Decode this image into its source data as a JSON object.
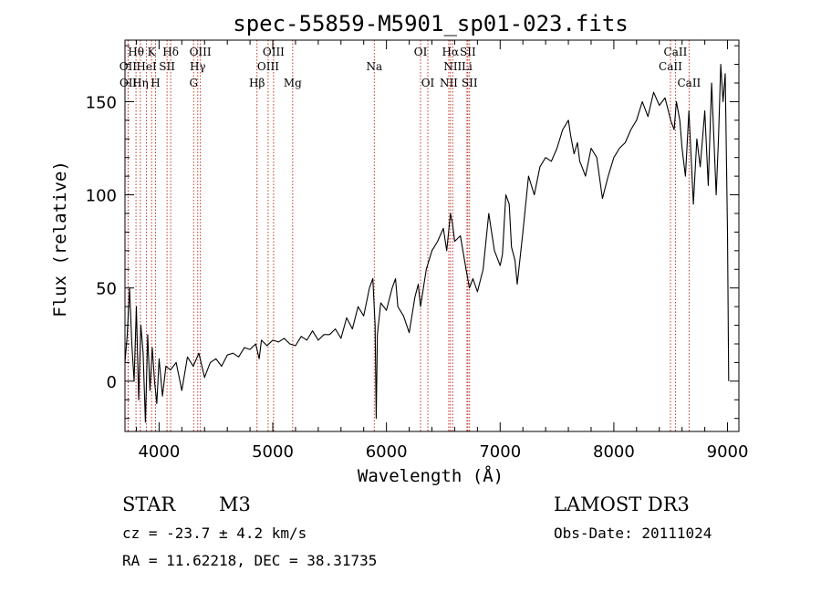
{
  "chart_data": {
    "type": "line",
    "title": "spec-55859-M5901_sp01-023.fits",
    "xlabel": "Wavelength (Å)",
    "ylabel": "Flux (relative)",
    "xlim": [
      3700,
      9100
    ],
    "ylim": [
      -27,
      183
    ],
    "x_ticks": [
      4000,
      5000,
      6000,
      7000,
      8000,
      9000
    ],
    "y_ticks": [
      0,
      50,
      100,
      150
    ],
    "series": [
      {
        "name": "flux",
        "x": [
          3700,
          3720,
          3740,
          3760,
          3780,
          3800,
          3820,
          3840,
          3860,
          3880,
          3900,
          3920,
          3940,
          3960,
          3980,
          4000,
          4030,
          4060,
          4100,
          4150,
          4200,
          4250,
          4300,
          4350,
          4400,
          4450,
          4500,
          4550,
          4600,
          4650,
          4700,
          4750,
          4800,
          4850,
          4880,
          4900,
          4950,
          5000,
          5050,
          5100,
          5150,
          5200,
          5250,
          5300,
          5350,
          5400,
          5450,
          5500,
          5550,
          5600,
          5650,
          5700,
          5750,
          5800,
          5850,
          5880,
          5900,
          5910,
          5920,
          5950,
          6000,
          6050,
          6080,
          6100,
          6150,
          6200,
          6250,
          6280,
          6300,
          6350,
          6400,
          6450,
          6500,
          6530,
          6563,
          6580,
          6600,
          6650,
          6700,
          6730,
          6760,
          6800,
          6850,
          6900,
          6950,
          7000,
          7020,
          7050,
          7080,
          7100,
          7130,
          7150,
          7200,
          7250,
          7300,
          7350,
          7400,
          7450,
          7500,
          7550,
          7600,
          7620,
          7650,
          7680,
          7700,
          7720,
          7750,
          7800,
          7850,
          7900,
          7950,
          8000,
          8050,
          8100,
          8150,
          8200,
          8250,
          8300,
          8350,
          8400,
          8450,
          8480,
          8500,
          8530,
          8550,
          8580,
          8600,
          8630,
          8660,
          8700,
          8730,
          8760,
          8800,
          8830,
          8860,
          8900,
          8920,
          8940,
          8960,
          8980,
          9000,
          9010
        ],
        "y": [
          10,
          25,
          50,
          20,
          0,
          40,
          -10,
          30,
          15,
          -22,
          25,
          -5,
          18,
          0,
          -12,
          12,
          -8,
          8,
          6,
          10,
          -5,
          13,
          8,
          15,
          2,
          10,
          12,
          8,
          14,
          15,
          13,
          18,
          17,
          20,
          12,
          22,
          19,
          22,
          21,
          23,
          20,
          19,
          24,
          22,
          27,
          22,
          25,
          25,
          28,
          23,
          34,
          28,
          40,
          35,
          50,
          55,
          30,
          -20,
          25,
          42,
          38,
          50,
          55,
          40,
          35,
          26,
          45,
          52,
          40,
          60,
          70,
          75,
          82,
          70,
          90,
          85,
          75,
          78,
          60,
          50,
          55,
          48,
          60,
          90,
          70,
          62,
          68,
          100,
          95,
          72,
          65,
          52,
          80,
          110,
          100,
          115,
          120,
          118,
          125,
          135,
          140,
          132,
          122,
          128,
          118,
          115,
          110,
          125,
          120,
          98,
          110,
          120,
          125,
          128,
          135,
          140,
          150,
          142,
          155,
          148,
          152,
          145,
          140,
          135,
          150,
          140,
          125,
          110,
          145,
          95,
          130,
          115,
          145,
          105,
          160,
          100,
          130,
          170,
          150,
          165,
          80,
          0
        ]
      }
    ],
    "lines": {
      "row1": [
        {
          "label": "Hθ",
          "wl": 3797
        },
        {
          "label": "K",
          "wl": 3934
        },
        {
          "label": "Hδ",
          "wl": 4102
        },
        {
          "label": "OIII",
          "wl": 4363
        },
        {
          "label": "OIII",
          "wl": 5007
        },
        {
          "label": "OI",
          "wl": 6300
        },
        {
          "label": "Hα",
          "wl": 6563
        },
        {
          "label": "SII",
          "wl": 6716
        },
        {
          "label": "CaII",
          "wl": 8542
        }
      ],
      "row2": [
        {
          "label": "OII",
          "wl": 3727
        },
        {
          "label": "HeI",
          "wl": 3889
        },
        {
          "label": "SII",
          "wl": 4070
        },
        {
          "label": "Hγ",
          "wl": 4340
        },
        {
          "label": "OIII",
          "wl": 4959
        },
        {
          "label": "Na",
          "wl": 5893
        },
        {
          "label": "NII",
          "wl": 6583
        },
        {
          "label": "Li",
          "wl": 6708
        },
        {
          "label": "CaII",
          "wl": 8498
        }
      ],
      "row3": [
        {
          "label": "OII",
          "wl": 3729
        },
        {
          "label": "Hη",
          "wl": 3835
        },
        {
          "label": "H",
          "wl": 3969
        },
        {
          "label": "G",
          "wl": 4304
        },
        {
          "label": "Hβ",
          "wl": 4861
        },
        {
          "label": "Mg",
          "wl": 5175
        },
        {
          "label": "OI",
          "wl": 6364
        },
        {
          "label": "NII",
          "wl": 6548
        },
        {
          "label": "SII",
          "wl": 6731
        },
        {
          "label": "CaII",
          "wl": 8662
        }
      ]
    }
  },
  "info": {
    "class": "STAR",
    "subclass": "M3",
    "cz": "cz = -23.7 ± 4.2 km/s",
    "coords": "RA =  11.62218, DEC =  38.31735",
    "survey": "LAMOST DR3",
    "obsdate": "Obs-Date: 20111024"
  }
}
